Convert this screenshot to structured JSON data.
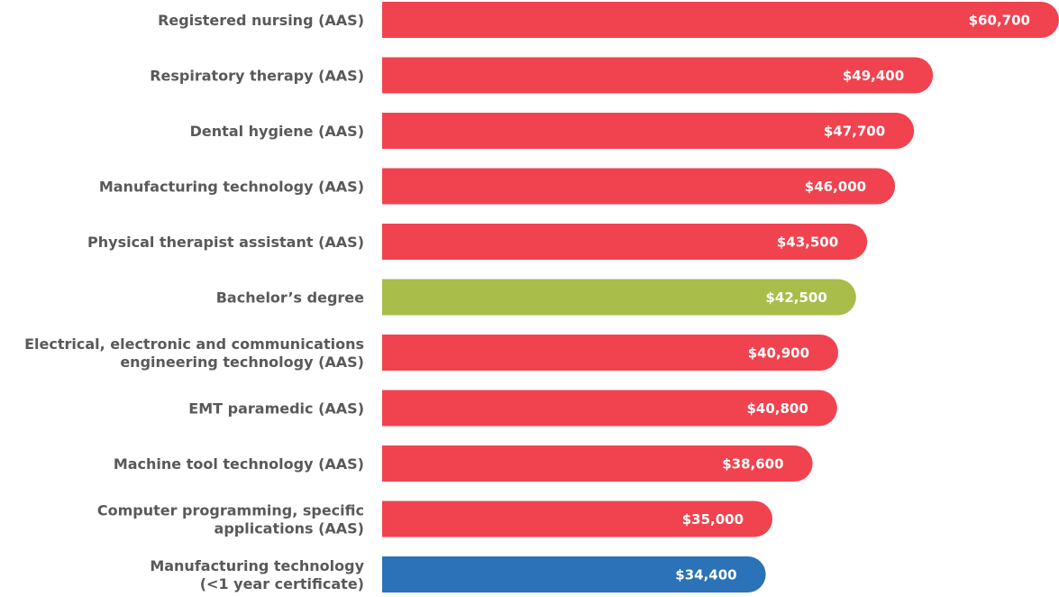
{
  "chart_data": {
    "type": "barh",
    "categories": [
      "Registered nursing (AAS)",
      "Respiratory therapy (AAS)",
      "Dental hygiene (AAS)",
      "Manufacturing technology (AAS)",
      "Physical therapist assistant (AAS)",
      "Bachelor’s degree",
      "Electrical, electronic and communications\nengineering technology (AAS)",
      "EMT paramedic (AAS)",
      "Machine tool technology (AAS)",
      "Computer programming, specific\napplications (AAS)",
      "Manufacturing technology\n(<1 year certificate)"
    ],
    "values": [
      60700,
      49400,
      47700,
      46000,
      43500,
      42500,
      40900,
      40800,
      38600,
      35000,
      34400
    ],
    "value_labels": [
      "$60,700",
      "$49,400",
      "$47,700",
      "$46,000",
      "$43,500",
      "$42,500",
      "$40,900",
      "$40,800",
      "$38,600",
      "$35,000",
      "$34,400"
    ],
    "colors": [
      "#f0434f",
      "#f0434f",
      "#f0434f",
      "#f0434f",
      "#f0434f",
      "#a9bd4a",
      "#f0434f",
      "#f0434f",
      "#f0434f",
      "#f0434f",
      "#2b72b8"
    ]
  }
}
